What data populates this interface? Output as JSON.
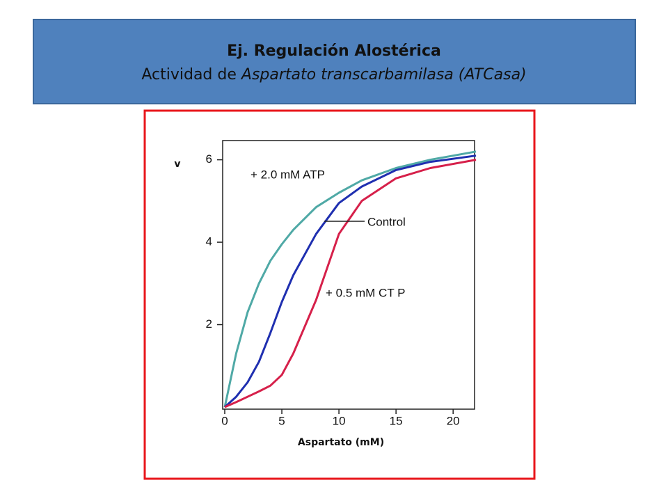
{
  "chart_data": {
    "type": "line",
    "title": "Ej. Regulación Alostérica",
    "subtitle": [
      "Actividad de",
      "Aspartato transcarbamilasa",
      "(ATCasa)"
    ],
    "x_label": "Aspartato (mM)",
    "y_label": "v",
    "x": [
      0,
      1,
      2,
      3,
      4,
      5,
      6,
      8,
      10,
      12,
      15,
      18,
      22
    ],
    "series": [
      {
        "name": "+ 2.0 mM ATP",
        "color": "#4fa9a6",
        "values": [
          0,
          1.3,
          2.3,
          3.0,
          3.55,
          3.95,
          4.3,
          4.85,
          5.2,
          5.5,
          5.8,
          6.0,
          6.2
        ]
      },
      {
        "name": "Control",
        "color": "#1f2fb0",
        "values": [
          0,
          0.25,
          0.6,
          1.1,
          1.8,
          2.55,
          3.2,
          4.2,
          4.95,
          5.35,
          5.75,
          5.95,
          6.1
        ]
      },
      {
        "name": "+ 0.5 mM CT P",
        "color": "#d6204a",
        "values": [
          0,
          0.12,
          0.25,
          0.38,
          0.52,
          0.78,
          1.3,
          2.6,
          4.2,
          5.0,
          5.55,
          5.8,
          6.0
        ]
      }
    ],
    "xlim": [
      0,
      22
    ],
    "ylim": [
      0,
      6.5
    ],
    "xticks": [
      0,
      5,
      10,
      15,
      20
    ],
    "yticks": [
      2,
      4,
      6
    ]
  }
}
